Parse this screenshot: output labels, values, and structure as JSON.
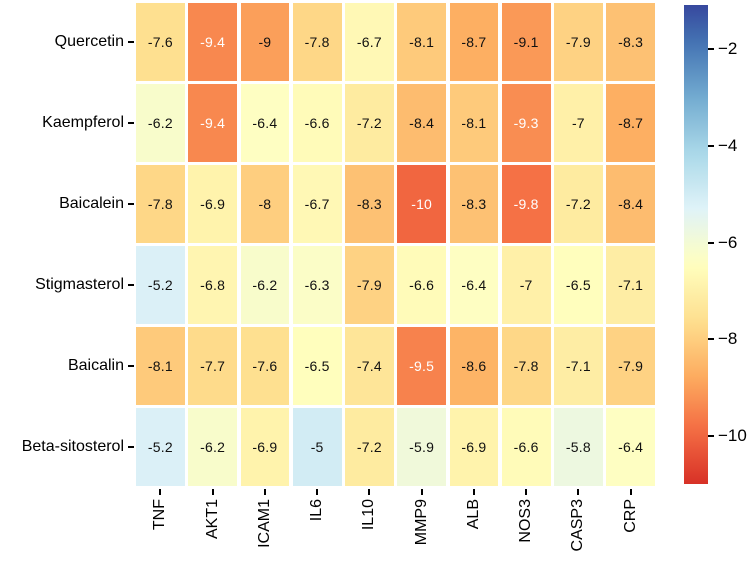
{
  "chart_data": {
    "type": "heatmap",
    "title": "",
    "rows": [
      "Quercetin",
      "Kaempferol",
      "Baicalein",
      "Stigmasterol",
      "Baicalin",
      "Beta-sitosterol"
    ],
    "columns": [
      "TNF",
      "AKT1",
      "ICAM1",
      "IL6",
      "IL10",
      "MMP9",
      "ALB",
      "NOS3",
      "CASP3",
      "CRP"
    ],
    "values": [
      [
        -7.6,
        -9.4,
        -9,
        -7.8,
        -6.7,
        -8.1,
        -8.7,
        -9.1,
        -7.9,
        -8.3
      ],
      [
        -6.2,
        -9.4,
        -6.4,
        -6.6,
        -7.2,
        -8.4,
        -8.1,
        -9.3,
        -7,
        -8.7
      ],
      [
        -7.8,
        -6.9,
        -8,
        -6.7,
        -8.3,
        -10,
        -8.3,
        -9.8,
        -7.2,
        -8.4
      ],
      [
        -5.2,
        -6.8,
        -6.2,
        -6.3,
        -7.9,
        -6.6,
        -6.4,
        -7,
        -6.5,
        -7.1
      ],
      [
        -8.1,
        -7.7,
        -7.6,
        -6.5,
        -7.4,
        -9.5,
        -8.6,
        -7.8,
        -7.1,
        -7.9
      ],
      [
        -5.2,
        -6.2,
        -6.9,
        -5,
        -7.2,
        -5.9,
        -6.9,
        -6.6,
        -5.8,
        -6.4
      ]
    ],
    "cell_labels": [
      [
        "-7.6",
        "-9.4",
        "-9",
        "-7.8",
        "-6.7",
        "-8.1",
        "-8.7",
        "-9.1",
        "-7.9",
        "-8.3"
      ],
      [
        "-6.2",
        "-9.4",
        "-6.4",
        "-6.6",
        "-7.2",
        "-8.4",
        "-8.1",
        "-9.3",
        "-7",
        "-8.7"
      ],
      [
        "-7.8",
        "-6.9",
        "-8",
        "-6.7",
        "-8.3",
        "-10",
        "-8.3",
        "-9.8",
        "-7.2",
        "-8.4"
      ],
      [
        "-5.2",
        "-6.8",
        "-6.2",
        "-6.3",
        "-7.9",
        "-6.6",
        "-6.4",
        "-7",
        "-6.5",
        "-7.1"
      ],
      [
        "-8.1",
        "-7.7",
        "-7.6",
        "-6.5",
        "-7.4",
        "-9.5",
        "-8.6",
        "-7.8",
        "-7.1",
        "-7.9"
      ],
      [
        "-5.2",
        "-6.2",
        "-6.9",
        "-5",
        "-7.2",
        "-5.9",
        "-6.9",
        "-6.6",
        "-5.8",
        "-6.4"
      ]
    ],
    "colormap": {
      "name": "RdYlBu",
      "stops": [
        "#a50026",
        "#d73027",
        "#f46d43",
        "#fdae61",
        "#fee090",
        "#ffffbf",
        "#e0f3f8",
        "#abd9e9",
        "#74add1",
        "#4575b4",
        "#313695"
      ],
      "norm_domain": [
        -12.15,
        -0.75
      ]
    },
    "colorbar": {
      "position": "right",
      "value_top": -1.08,
      "value_bottom": -11.0,
      "ticks": [
        -2,
        -4,
        -6,
        -8,
        -10
      ],
      "tick_labels": [
        "−2",
        "−4",
        "−6",
        "−8",
        "−10"
      ]
    },
    "annotation_colors": {
      "dark_text": "#111111",
      "light_text": "#ffffff",
      "luminance_threshold": 0.408
    },
    "background": "#ffffff",
    "grid": false,
    "xlabel": "",
    "ylabel": ""
  }
}
